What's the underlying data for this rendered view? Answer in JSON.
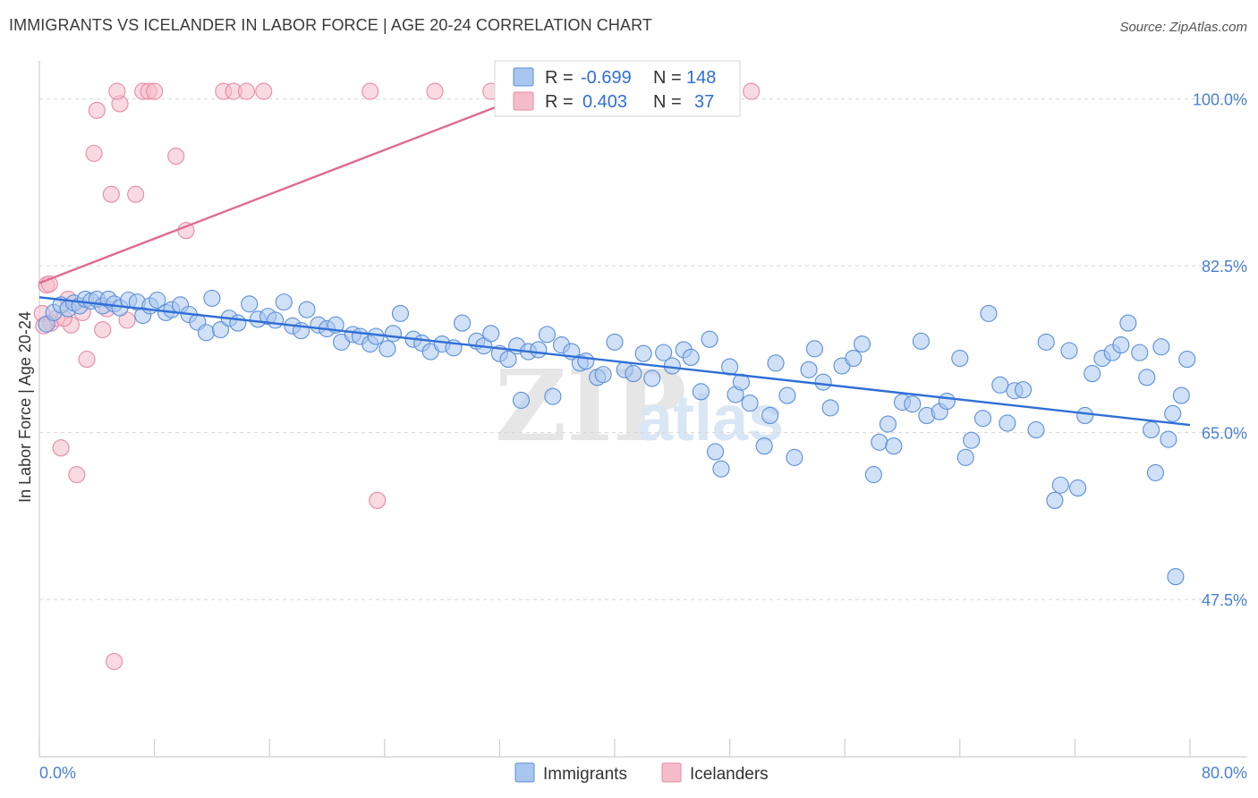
{
  "title": "IMMIGRANTS VS ICELANDER IN LABOR FORCE | AGE 20-24 CORRELATION CHART",
  "source": "Source: ZipAtlas.com",
  "watermark": {
    "zip": "ZIP",
    "atlas": "atlas"
  },
  "colors": {
    "immigrants_fill": "#a9c6ee",
    "immigrants_stroke": "#5b8fd8",
    "immigrants_line": "#2f6fd6",
    "icelanders_fill": "#f4bccb",
    "icelanders_stroke": "#e68aa4",
    "icelanders_line": "#e06a92",
    "tick_text": "#4a7fd4"
  },
  "legend": {
    "row1": {
      "r_label": "R =",
      "r_value": "-0.699",
      "n_label": "N =",
      "n_value": "148"
    },
    "row2": {
      "r_label": "R =",
      "r_value": "0.403",
      "n_label": "N =",
      "n_value": "37"
    }
  },
  "bottom_legend": {
    "immigrants": "Immigrants",
    "icelanders": "Icelanders"
  },
  "chart_data": {
    "type": "scatter",
    "title": "IMMIGRANTS VS ICELANDER IN LABOR FORCE | AGE 20-24 CORRELATION CHART",
    "xlabel": "",
    "ylabel": "In Labor Force | Age 20-24",
    "xlim": [
      0,
      80
    ],
    "ylim": [
      31,
      104
    ],
    "x_tick_labels": [
      "0.0%",
      "80.0%"
    ],
    "y_ticks": [
      47.5,
      65.0,
      82.5,
      100.0
    ],
    "y_tick_labels": [
      "47.5%",
      "65.0%",
      "82.5%",
      "100.0%"
    ],
    "grid": true,
    "legend_position": "top-center",
    "series": [
      {
        "name": "Immigrants",
        "R": -0.699,
        "N": 148,
        "trend": {
          "x": [
            0,
            80
          ],
          "y": [
            79.2,
            65.8
          ]
        },
        "points": [
          [
            0.5,
            76.4
          ],
          [
            1.0,
            77.6
          ],
          [
            1.5,
            78.4
          ],
          [
            2.0,
            78.0
          ],
          [
            2.4,
            78.6
          ],
          [
            2.8,
            78.3
          ],
          [
            3.2,
            79.0
          ],
          [
            3.6,
            78.8
          ],
          [
            4.0,
            79.0
          ],
          [
            4.4,
            78.3
          ],
          [
            4.8,
            79.0
          ],
          [
            5.2,
            78.5
          ],
          [
            5.6,
            78.1
          ],
          [
            6.2,
            78.9
          ],
          [
            6.8,
            78.7
          ],
          [
            7.2,
            77.3
          ],
          [
            7.7,
            78.3
          ],
          [
            8.2,
            78.9
          ],
          [
            8.8,
            77.6
          ],
          [
            9.2,
            77.9
          ],
          [
            9.8,
            78.4
          ],
          [
            10.4,
            77.4
          ],
          [
            11.0,
            76.6
          ],
          [
            11.6,
            75.5
          ],
          [
            12.0,
            79.1
          ],
          [
            12.6,
            75.8
          ],
          [
            13.2,
            77.0
          ],
          [
            13.8,
            76.5
          ],
          [
            14.6,
            78.5
          ],
          [
            15.2,
            76.9
          ],
          [
            15.9,
            77.2
          ],
          [
            16.4,
            76.8
          ],
          [
            17.0,
            78.7
          ],
          [
            17.6,
            76.2
          ],
          [
            18.2,
            75.7
          ],
          [
            18.6,
            77.9
          ],
          [
            19.4,
            76.3
          ],
          [
            20.0,
            75.9
          ],
          [
            20.6,
            76.3
          ],
          [
            21.0,
            74.5
          ],
          [
            21.8,
            75.3
          ],
          [
            22.3,
            75.1
          ],
          [
            23.0,
            74.3
          ],
          [
            23.4,
            75.1
          ],
          [
            24.2,
            73.8
          ],
          [
            24.6,
            75.4
          ],
          [
            25.1,
            77.5
          ],
          [
            26.0,
            74.8
          ],
          [
            26.6,
            74.4
          ],
          [
            27.2,
            73.5
          ],
          [
            28.0,
            74.3
          ],
          [
            28.8,
            73.9
          ],
          [
            29.4,
            76.5
          ],
          [
            30.4,
            74.6
          ],
          [
            30.9,
            74.1
          ],
          [
            31.4,
            75.4
          ],
          [
            32.0,
            73.3
          ],
          [
            32.6,
            72.7
          ],
          [
            33.5,
            68.4
          ],
          [
            33.2,
            74.1
          ],
          [
            34.0,
            73.5
          ],
          [
            34.7,
            73.7
          ],
          [
            35.3,
            75.3
          ],
          [
            35.7,
            68.8
          ],
          [
            36.3,
            74.2
          ],
          [
            37.0,
            73.5
          ],
          [
            37.6,
            72.3
          ],
          [
            38.0,
            72.5
          ],
          [
            38.8,
            70.8
          ],
          [
            39.2,
            71.1
          ],
          [
            40.0,
            74.5
          ],
          [
            40.7,
            71.6
          ],
          [
            41.3,
            71.2
          ],
          [
            42.0,
            73.3
          ],
          [
            42.6,
            70.7
          ],
          [
            43.4,
            73.4
          ],
          [
            44.0,
            72.0
          ],
          [
            44.8,
            73.7
          ],
          [
            45.3,
            72.9
          ],
          [
            46.0,
            69.3
          ],
          [
            46.6,
            74.8
          ],
          [
            47.0,
            63.0
          ],
          [
            47.4,
            61.2
          ],
          [
            48.0,
            71.9
          ],
          [
            48.4,
            69.0
          ],
          [
            48.8,
            70.3
          ],
          [
            49.4,
            68.1
          ],
          [
            50.4,
            63.6
          ],
          [
            50.8,
            66.8
          ],
          [
            51.2,
            72.3
          ],
          [
            52.0,
            68.9
          ],
          [
            52.5,
            62.4
          ],
          [
            53.5,
            71.6
          ],
          [
            53.9,
            73.8
          ],
          [
            54.5,
            70.3
          ],
          [
            55.0,
            67.6
          ],
          [
            55.8,
            72.0
          ],
          [
            56.6,
            72.8
          ],
          [
            57.2,
            74.3
          ],
          [
            58.0,
            60.6
          ],
          [
            58.4,
            64.0
          ],
          [
            59.0,
            65.9
          ],
          [
            59.4,
            63.6
          ],
          [
            60.0,
            68.2
          ],
          [
            60.7,
            68.0
          ],
          [
            61.3,
            74.6
          ],
          [
            61.7,
            66.8
          ],
          [
            62.6,
            67.2
          ],
          [
            63.1,
            68.3
          ],
          [
            64.0,
            72.8
          ],
          [
            64.4,
            62.4
          ],
          [
            64.8,
            64.2
          ],
          [
            65.6,
            66.5
          ],
          [
            66.0,
            77.5
          ],
          [
            66.8,
            70.0
          ],
          [
            67.3,
            66.0
          ],
          [
            67.8,
            69.4
          ],
          [
            68.4,
            69.5
          ],
          [
            69.3,
            65.3
          ],
          [
            70.0,
            74.5
          ],
          [
            70.6,
            57.9
          ],
          [
            71.0,
            59.5
          ],
          [
            71.6,
            73.6
          ],
          [
            72.2,
            59.2
          ],
          [
            72.7,
            66.8
          ],
          [
            73.2,
            71.2
          ],
          [
            73.9,
            72.8
          ],
          [
            74.6,
            73.4
          ],
          [
            75.2,
            74.2
          ],
          [
            75.7,
            76.5
          ],
          [
            76.5,
            73.4
          ],
          [
            77.0,
            70.8
          ],
          [
            77.3,
            65.3
          ],
          [
            77.6,
            60.8
          ],
          [
            78.0,
            74.0
          ],
          [
            78.5,
            64.3
          ],
          [
            78.8,
            67.0
          ],
          [
            79.0,
            49.9
          ],
          [
            79.4,
            68.9
          ],
          [
            79.8,
            72.7
          ]
        ]
      },
      {
        "name": "Icelanders",
        "R": 0.403,
        "N": 37,
        "trend": {
          "x": [
            0,
            33.2
          ],
          "y": [
            80.7,
            100.0
          ]
        },
        "points": [
          [
            0.2,
            77.5
          ],
          [
            0.5,
            80.5
          ],
          [
            0.8,
            76.5
          ],
          [
            1.2,
            77.0
          ],
          [
            1.5,
            63.4
          ],
          [
            2.2,
            76.3
          ],
          [
            2.6,
            60.6
          ],
          [
            3.0,
            77.6
          ],
          [
            3.3,
            72.7
          ],
          [
            3.8,
            94.3
          ],
          [
            4.0,
            98.8
          ],
          [
            4.4,
            75.8
          ],
          [
            4.7,
            78.0
          ],
          [
            5.0,
            90.0
          ],
          [
            5.6,
            99.5
          ],
          [
            5.4,
            100.8
          ],
          [
            6.1,
            76.8
          ],
          [
            6.7,
            90.0
          ],
          [
            7.2,
            100.8
          ],
          [
            7.6,
            100.8
          ],
          [
            8.0,
            100.8
          ],
          [
            9.5,
            94.0
          ],
          [
            10.2,
            86.2
          ],
          [
            12.8,
            100.8
          ],
          [
            13.5,
            100.8
          ],
          [
            14.4,
            100.8
          ],
          [
            15.6,
            100.8
          ],
          [
            23.0,
            100.8
          ],
          [
            23.5,
            57.9
          ],
          [
            27.5,
            100.8
          ],
          [
            31.4,
            100.8
          ],
          [
            49.5,
            100.8
          ],
          [
            2.0,
            79.0
          ],
          [
            1.7,
            77.0
          ],
          [
            0.3,
            76.2
          ],
          [
            5.2,
            41.0
          ],
          [
            0.7,
            80.6
          ]
        ]
      }
    ]
  }
}
